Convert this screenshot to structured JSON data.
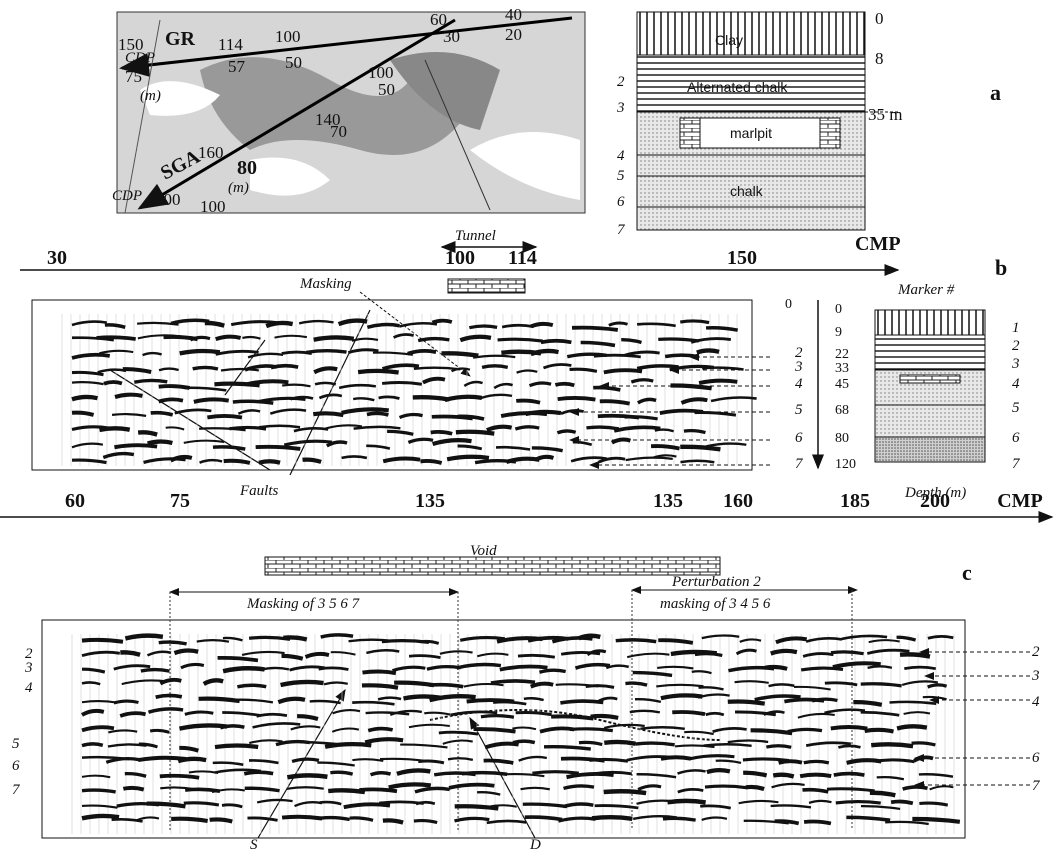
{
  "panel_a": {
    "label": "a",
    "map": {
      "lines": [
        "GR",
        "SGA"
      ],
      "cdp_labels": [
        "CDP",
        "CDP"
      ],
      "units": [
        "(m)",
        "(m)"
      ],
      "gr_cmp": [
        150,
        114,
        100,
        60,
        40
      ],
      "gr_distance": [
        75,
        57,
        50,
        30,
        20
      ],
      "sga_cmp": [
        100,
        140,
        160,
        200
      ],
      "sga_distance": [
        50,
        70,
        80,
        100
      ]
    },
    "column": {
      "layers": [
        "Clay",
        "Alternated chalk",
        "marlpit",
        "chalk"
      ],
      "depths": [
        0,
        8,
        "35 m"
      ],
      "markers": [
        2,
        3,
        4,
        5,
        6,
        7
      ]
    }
  },
  "panel_b": {
    "label": "b",
    "axis_title": "CMP",
    "cmp_ticks": [
      30,
      100,
      114,
      150
    ],
    "tunnel": "Tunnel",
    "marker_title": "Marker #",
    "masking": "Masking",
    "faults": "Faults",
    "depth_axis_origin": 0,
    "depths": [
      0,
      9,
      22,
      33,
      45,
      68,
      80,
      120
    ],
    "section_markers": [
      2,
      3,
      4,
      5,
      6,
      7
    ],
    "column_markers": [
      1,
      2,
      3,
      4,
      5,
      6,
      7
    ],
    "depth_title": "Depth (m)"
  },
  "panel_c": {
    "label": "c",
    "axis_title": "CMP",
    "cmp_ticks": [
      60,
      75,
      135,
      135,
      160,
      185,
      200
    ],
    "void": "Void",
    "masking": "Masking of 3 5 6 7",
    "perturbation": "Perturbation 2",
    "perturbation_masking": "masking of 3 4 5 6",
    "left_markers": [
      2,
      3,
      4,
      5,
      6,
      7
    ],
    "right_markers": [
      2,
      3,
      4,
      6,
      7
    ],
    "annotations": [
      "S",
      "D"
    ]
  }
}
